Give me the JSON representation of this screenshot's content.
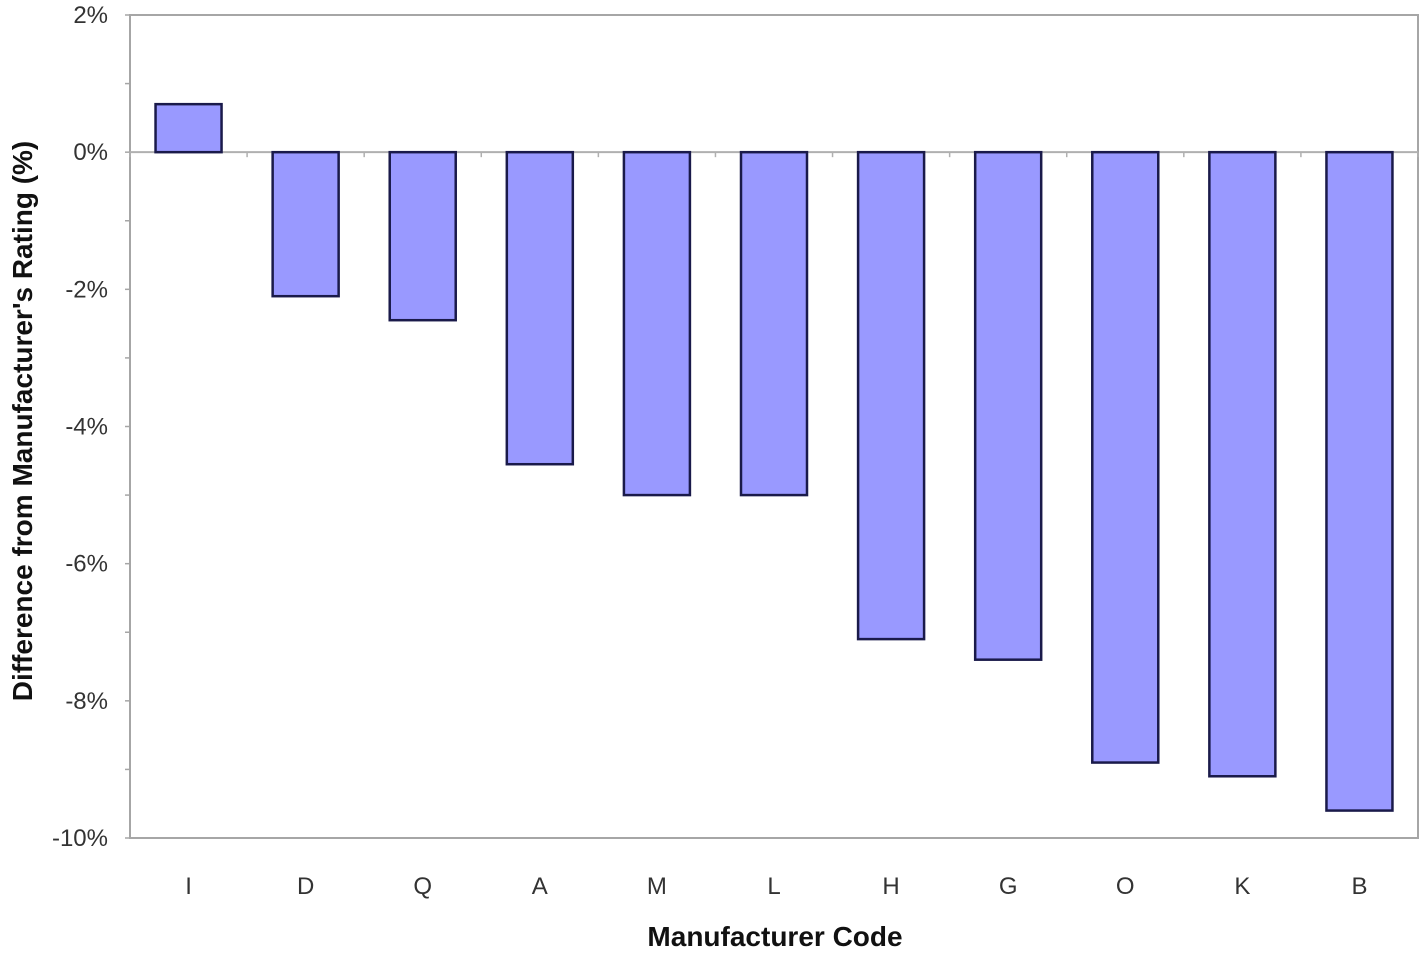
{
  "chart_data": {
    "type": "bar",
    "categories": [
      "I",
      "D",
      "Q",
      "A",
      "M",
      "L",
      "H",
      "G",
      "O",
      "K",
      "B"
    ],
    "values": [
      0.7,
      -2.1,
      -2.45,
      -4.55,
      -5.0,
      -5.0,
      -7.1,
      -7.4,
      -8.9,
      -9.1,
      -9.6
    ],
    "title": "",
    "xlabel": "Manufacturer Code",
    "ylabel": "Difference from Manufacturer's Rating (%)",
    "ylim": [
      -10,
      2
    ],
    "yticks": [
      2,
      0,
      -2,
      -4,
      -6,
      -8,
      -10
    ],
    "ytick_labels": [
      "2%",
      "0%",
      "-2%",
      "-4%",
      "-6%",
      "-8%",
      "-10%"
    ],
    "value_unit": "%",
    "grid": false,
    "legend": "none",
    "colors": {
      "bar_fill": "#9999ff",
      "bar_stroke": "#1a1a4a",
      "zero_line": "#b0b0b0",
      "frame": "#a6a6a6"
    }
  }
}
